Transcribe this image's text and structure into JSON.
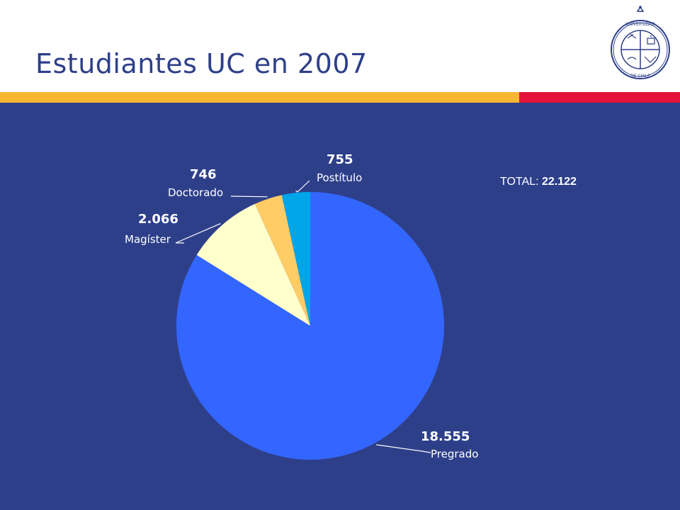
{
  "slide": {
    "title": "Estudiantes UC en 2007",
    "total_label": "TOTAL: ",
    "total_value": "22.122"
  },
  "seal": {
    "text": "PONTIFICIA UNIVERSIDAD CATOLICA DE CHILE"
  },
  "colors": {
    "title": "#2e3f8a",
    "panel_bg": "#2e3f8a",
    "bar_yellow": "#f8b733",
    "bar_red": "#e3133b",
    "label_white": "#ffffff"
  },
  "chart_data": {
    "type": "pie",
    "title": "",
    "legend": "none",
    "slices": [
      {
        "name": "Pregrado",
        "value": 18555,
        "value_label": "18.555",
        "color": "#3366ff"
      },
      {
        "name": "Magíster",
        "value": 2066,
        "value_label": "2.066",
        "color": "#ffffcc"
      },
      {
        "name": "Doctorado",
        "value": 746,
        "value_label": "746",
        "color": "#ffcc66"
      },
      {
        "name": "Postítulo",
        "value": 755,
        "value_label": "755",
        "color": "#00a6e8"
      }
    ]
  }
}
